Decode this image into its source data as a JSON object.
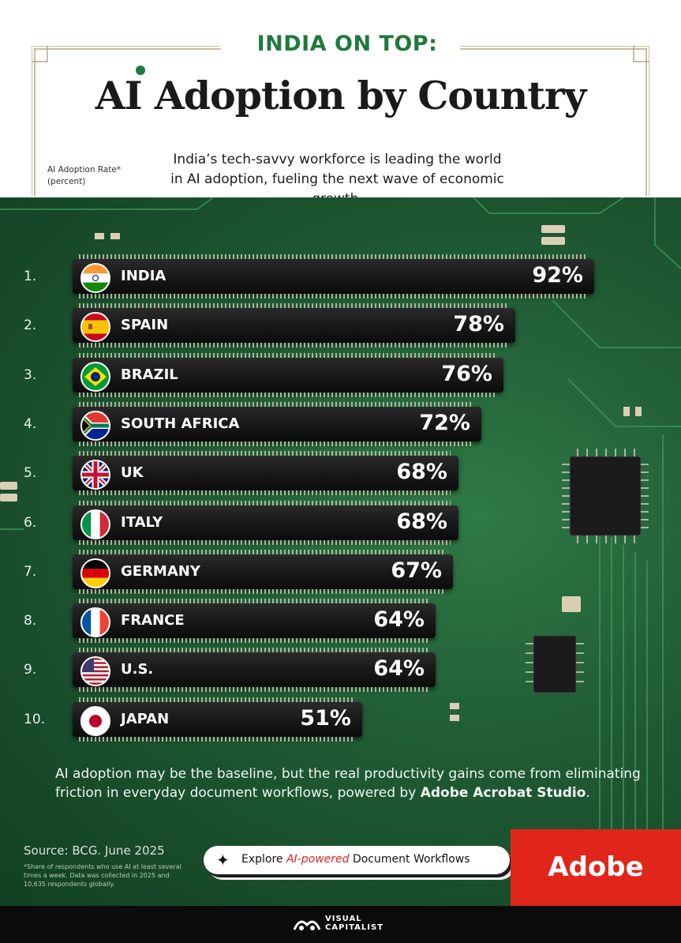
{
  "header": {
    "subtitle": "INDIA ON TOP:",
    "title": "AI Adoption by Country",
    "description": "India’s tech-savvy workforce is leading the world in AI adoption, fueling the next wave of economic growth.",
    "axis_note_line1": "AI Adoption Rate*",
    "axis_note_line2": "(percent)"
  },
  "chart_data": {
    "type": "bar",
    "orientation": "horizontal",
    "title": "AI Adoption by Country",
    "subtitle": "INDIA ON TOP:",
    "ylabel": "AI Adoption Rate* (percent)",
    "categories": [
      "INDIA",
      "SPAIN",
      "BRAZIL",
      "SOUTH AFRICA",
      "UK",
      "ITALY",
      "GERMANY",
      "FRANCE",
      "U.S.",
      "JAPAN"
    ],
    "ranks": [
      "1.",
      "2.",
      "3.",
      "4.",
      "5.",
      "6.",
      "7.",
      "8.",
      "9.",
      "10."
    ],
    "values": [
      92,
      78,
      76,
      72,
      68,
      68,
      67,
      64,
      64,
      51
    ],
    "value_labels": [
      "92%",
      "78%",
      "76%",
      "72%",
      "68%",
      "68%",
      "67%",
      "64%",
      "64%",
      "51%"
    ],
    "flags": [
      "india-flag-icon",
      "spain-flag-icon",
      "brazil-flag-icon",
      "south-africa-flag-icon",
      "uk-flag-icon",
      "italy-flag-icon",
      "germany-flag-icon",
      "france-flag-icon",
      "us-flag-icon",
      "japan-flag-icon"
    ],
    "xlim": [
      0,
      100
    ],
    "grid": false,
    "legend": "none"
  },
  "footer": {
    "text_before": "AI adoption may be the baseline, but the real productivity gains come from eliminating friction in everyday document workflows, powered by ",
    "text_bold": "Adobe Acrobat Studio",
    "text_after": ".",
    "source": "Source: BCG. June 2025",
    "footnote": "*Share of respondents who use AI at least several times a week. Data was collected in 2025 and 10,635 respondents globally."
  },
  "cta": {
    "label_before": "Explore ",
    "label_highlight": "AI-powered",
    "label_after": " Document Workflows"
  },
  "brand": {
    "adobe": "Adobe",
    "vc_line1": "VISUAL",
    "vc_line2": "CAPITALIST"
  },
  "colors": {
    "accent_green": "#1f7a3c",
    "board_green": "#1f5a33",
    "adobe_red": "#e1251b",
    "bar_black": "#161616"
  }
}
